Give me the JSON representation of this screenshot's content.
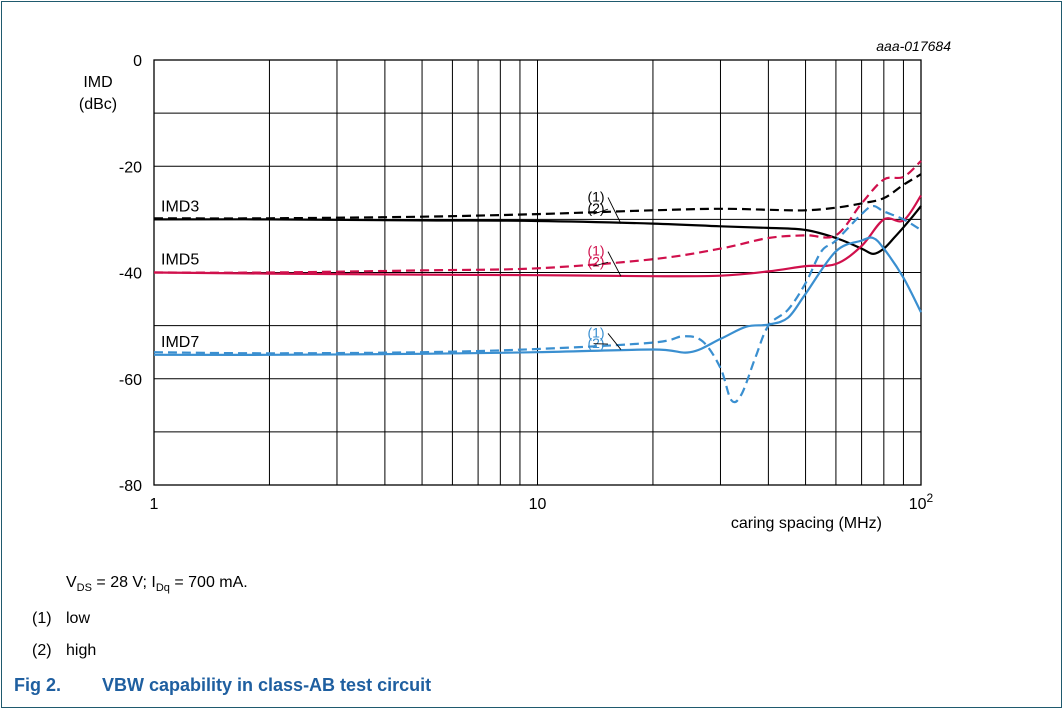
{
  "figure_code": "aaa-017684",
  "caption": {
    "number": "Fig 2.",
    "title": "VBW capability in class-AB test circuit"
  },
  "conditions": {
    "vds_symbol": "V",
    "vds_sub": "DS",
    "vds_value": " = 28 V; I",
    "idq_sub": "Dq",
    "idq_value": " = 700 mA."
  },
  "notes": [
    {
      "marker": "(1)",
      "text": "low"
    },
    {
      "marker": "(2)",
      "text": "high"
    }
  ],
  "colors": {
    "IMD3": "#000000",
    "IMD5": "#d0104c",
    "IMD7": "#3a8fd0",
    "grid": "#000000",
    "caption": "#1f5fa0",
    "frame": "#1f5a6e"
  },
  "chart_data": {
    "type": "line",
    "ylabel": "IMD",
    "yunit": "(dBc)",
    "xlabel": "caring spacing (MHz)",
    "x_scale": "log",
    "xlim": [
      1,
      100
    ],
    "ylim": [
      -80,
      0
    ],
    "x_ticks": [
      {
        "value": 1,
        "label": "1"
      },
      {
        "value": 10,
        "label": "10"
      },
      {
        "value": 100,
        "label": "10",
        "exponent": "2"
      }
    ],
    "y_ticks": [
      {
        "value": 0,
        "label": "0"
      },
      {
        "value": -20,
        "label": "-20"
      },
      {
        "value": -40,
        "label": "-40"
      },
      {
        "value": -60,
        "label": "-60"
      },
      {
        "value": -80,
        "label": "-80"
      }
    ],
    "grid": true,
    "series": [
      {
        "name": "IMD3",
        "group": "IMD3",
        "variant": "(1)",
        "dashed": false,
        "x": [
          1,
          2,
          5,
          10,
          20,
          30,
          40,
          50,
          60,
          70,
          75,
          80,
          85,
          90,
          95,
          100
        ],
        "y": [
          -30,
          -30,
          -30.2,
          -30.3,
          -30.8,
          -31.3,
          -31.6,
          -32,
          -33.5,
          -35.5,
          -36.5,
          -35.5,
          -33.5,
          -31.5,
          -29.5,
          -27.5
        ]
      },
      {
        "name": "IMD3",
        "group": "IMD3",
        "variant": "(2)",
        "dashed": true,
        "x": [
          1,
          2,
          5,
          10,
          20,
          30,
          40,
          50,
          60,
          70,
          80,
          90,
          100
        ],
        "y": [
          -29.8,
          -29.8,
          -29.5,
          -29,
          -28.3,
          -28,
          -28.2,
          -28.3,
          -27.8,
          -27,
          -26,
          -23.5,
          -21.5
        ]
      },
      {
        "name": "IMD5",
        "group": "IMD5",
        "variant": "(1)",
        "dashed": false,
        "x": [
          1,
          2,
          5,
          10,
          20,
          30,
          40,
          50,
          60,
          70,
          80,
          90,
          100
        ],
        "y": [
          -40,
          -40.2,
          -40.4,
          -40.5,
          -40.7,
          -40.6,
          -39.8,
          -38.8,
          -38.4,
          -35,
          -30,
          -30.2,
          -25.5
        ]
      },
      {
        "name": "IMD5",
        "group": "IMD5",
        "variant": "(2)",
        "dashed": true,
        "x": [
          1,
          2,
          5,
          10,
          20,
          30,
          40,
          50,
          60,
          70,
          80,
          90,
          100
        ],
        "y": [
          -40,
          -40,
          -39.6,
          -39.2,
          -37.5,
          -35.5,
          -33.5,
          -33,
          -33,
          -27,
          -22.5,
          -22,
          -19
        ]
      },
      {
        "name": "IMD7",
        "group": "IMD7",
        "variant": "(1)",
        "dashed": false,
        "x": [
          1,
          2,
          5,
          10,
          20,
          25,
          30,
          35,
          40,
          45,
          50,
          60,
          70,
          75,
          80,
          90,
          100
        ],
        "y": [
          -55.5,
          -55.5,
          -55.3,
          -55,
          -54.5,
          -55,
          -52.5,
          -50.2,
          -49.8,
          -48.5,
          -44,
          -36,
          -34,
          -33.5,
          -35.5,
          -41,
          -47.5
        ]
      },
      {
        "name": "IMD7",
        "group": "IMD7",
        "variant": "(2)",
        "dashed": true,
        "x": [
          1,
          2,
          5,
          10,
          20,
          24,
          27,
          30,
          32,
          34,
          37,
          40,
          45,
          50,
          55,
          60,
          70,
          75,
          80,
          90,
          100
        ],
        "y": [
          -55,
          -55.2,
          -55,
          -54.4,
          -53.2,
          -52,
          -53,
          -58,
          -64,
          -63,
          -56,
          -50,
          -47,
          -42,
          -36,
          -34,
          -29,
          -27.5,
          -28.5,
          -30,
          -32
        ]
      }
    ],
    "annotations": [
      {
        "group": "IMD3",
        "label": "IMD3"
      },
      {
        "group": "IMD5",
        "label": "IMD5"
      },
      {
        "group": "IMD7",
        "label": "IMD7"
      }
    ]
  }
}
